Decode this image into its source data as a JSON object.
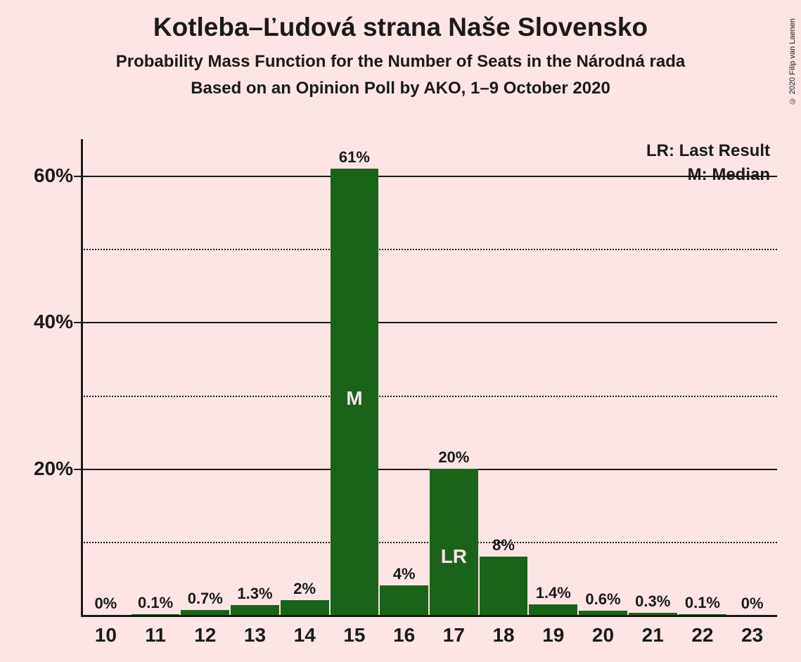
{
  "title": "Kotleba–Ľudová strana Naše Slovensko",
  "subtitle": "Probability Mass Function for the Number of Seats in the Národná rada",
  "subtitle2": "Based on an Opinion Poll by AKO, 1–9 October 2020",
  "copyright": "© 2020 Filip van Laenen",
  "legend": {
    "lr": "LR: Last Result",
    "m": "M: Median"
  },
  "chart": {
    "type": "bar",
    "background_color": "#fde5e6",
    "bar_color": "#1a6419",
    "axis_color": "#1a1a1a",
    "bar_width_ratio": 1.0,
    "categories": [
      "10",
      "11",
      "12",
      "13",
      "14",
      "15",
      "16",
      "17",
      "18",
      "19",
      "20",
      "21",
      "22",
      "23"
    ],
    "values": [
      0,
      0.1,
      0.7,
      1.3,
      2,
      61,
      4,
      20,
      8,
      1.4,
      0.6,
      0.3,
      0.1,
      0
    ],
    "value_labels": [
      "0%",
      "0.1%",
      "0.7%",
      "1.3%",
      "2%",
      "61%",
      "4%",
      "20%",
      "8%",
      "1.4%",
      "0.6%",
      "0.3%",
      "0.1%",
      "0%"
    ],
    "median_index": 5,
    "median_symbol": "M",
    "last_result_index": 7,
    "last_result_symbol": "LR",
    "ylim": [
      0,
      65
    ],
    "y_major_ticks": [
      20,
      40,
      60
    ],
    "y_major_labels": [
      "20%",
      "40%",
      "60%"
    ],
    "y_minor_ticks": [
      10,
      30,
      50
    ],
    "title_fontsize": 37,
    "subtitle_fontsize": 24,
    "ylabel_fontsize": 28,
    "xlabel_fontsize": 28,
    "barlabel_fontsize": 22,
    "legend_fontsize": 24,
    "inner_label_color": "#fde5e6"
  }
}
